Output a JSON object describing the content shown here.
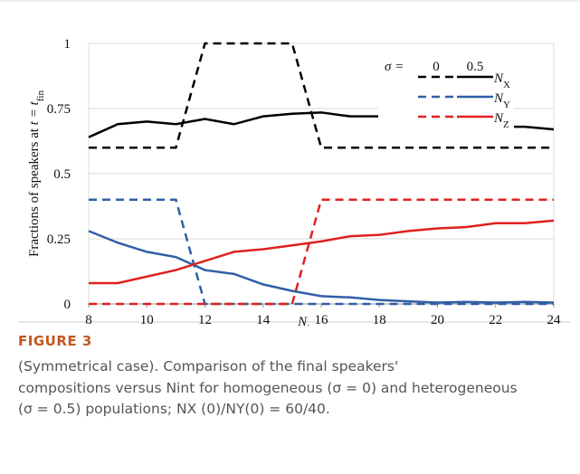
{
  "chart_data": {
    "type": "line",
    "ylabel": {
      "text": "Fractions of speakers at ",
      "math": "t = t",
      "sub": "fin"
    },
    "xlabel": {
      "main": "N",
      "sub": "int"
    },
    "x": [
      8,
      9,
      10,
      11,
      12,
      13,
      14,
      15,
      16,
      17,
      18,
      19,
      20,
      21,
      22,
      23,
      24
    ],
    "xlim": [
      8,
      24
    ],
    "xticks": [
      8,
      10,
      12,
      14,
      16,
      18,
      20,
      22,
      24
    ],
    "ylim": [
      0,
      1
    ],
    "yticks": [
      0,
      0.25,
      0.5,
      0.75,
      1
    ],
    "grid": true,
    "legend": {
      "title": "σ =",
      "columns": [
        "0",
        "0.5"
      ]
    },
    "series": [
      {
        "name": "NX",
        "color": "#000000",
        "homogeneous": [
          0.6,
          0.6,
          0.6,
          0.6,
          1,
          1,
          1,
          1,
          0.6,
          0.6,
          0.6,
          0.6,
          0.6,
          0.6,
          0.6,
          0.6,
          0.6
        ],
        "heterogeneous": [
          0.64,
          0.69,
          0.7,
          0.69,
          0.71,
          0.69,
          0.72,
          0.73,
          0.735,
          0.72,
          0.72,
          0.71,
          0.7,
          0.69,
          0.68,
          0.68,
          0.67
        ]
      },
      {
        "name": "NY",
        "color": "#2f5fa6",
        "homogeneous": [
          0.4,
          0.4,
          0.4,
          0.4,
          0,
          0,
          0,
          0,
          0,
          0,
          0,
          0,
          0,
          0,
          0,
          0,
          0
        ],
        "heterogeneous": [
          0.28,
          0.235,
          0.2,
          0.18,
          0.13,
          0.115,
          0.075,
          0.05,
          0.03,
          0.025,
          0.015,
          0.01,
          0.005,
          0.008,
          0.005,
          0.008,
          0.005
        ]
      },
      {
        "name": "NZ",
        "color": "#e02020",
        "homogeneous": [
          0,
          0,
          0,
          0,
          0,
          0,
          0,
          0,
          0.4,
          0.4,
          0.4,
          0.4,
          0.4,
          0.4,
          0.4,
          0.4,
          0.4
        ],
        "heterogeneous": [
          0.08,
          0.08,
          0.105,
          0.13,
          0.165,
          0.2,
          0.21,
          0.225,
          0.24,
          0.26,
          0.265,
          0.28,
          0.29,
          0.295,
          0.31,
          0.31,
          0.32
        ]
      }
    ]
  },
  "caption": {
    "label": "FIGURE 3",
    "lines": [
      "(Symmetrical case). Comparison of the final speakers'",
      "compositions versus Nint for homogeneous (σ = 0) and heterogeneous",
      "(σ = 0.5) populations; NX (0)/NY(0) = 60/40."
    ]
  }
}
